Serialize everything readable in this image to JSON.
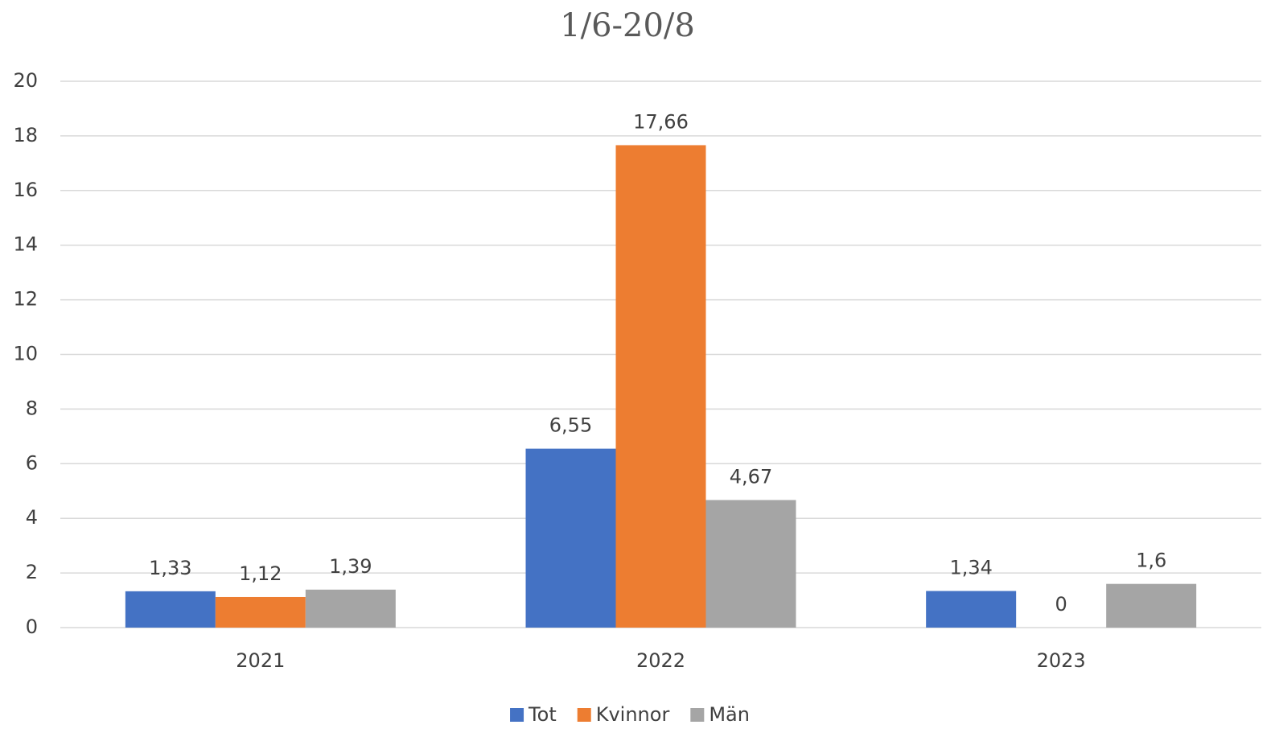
{
  "chart_data": {
    "type": "bar",
    "title": "1/6-20/8",
    "categories": [
      "2021",
      "2022",
      "2023"
    ],
    "series": [
      {
        "name": "Tot",
        "color": "#4472c4",
        "values": [
          1.33,
          6.55,
          1.34
        ],
        "value_labels": [
          "1,33",
          "6,55",
          "1,34"
        ]
      },
      {
        "name": "Kvinnor",
        "color": "#ed7d31",
        "values": [
          1.12,
          17.66,
          0
        ],
        "value_labels": [
          "1,12",
          "17,66",
          "0"
        ]
      },
      {
        "name": "Män",
        "color": "#a5a5a5",
        "values": [
          1.39,
          4.67,
          1.6
        ],
        "value_labels": [
          "1,39",
          "4,67",
          "1,6"
        ]
      }
    ],
    "ylim": [
      0,
      20
    ],
    "yticks": [
      0,
      2,
      4,
      6,
      8,
      10,
      12,
      14,
      16,
      18,
      20
    ],
    "grid": true,
    "legend": "bottom"
  }
}
